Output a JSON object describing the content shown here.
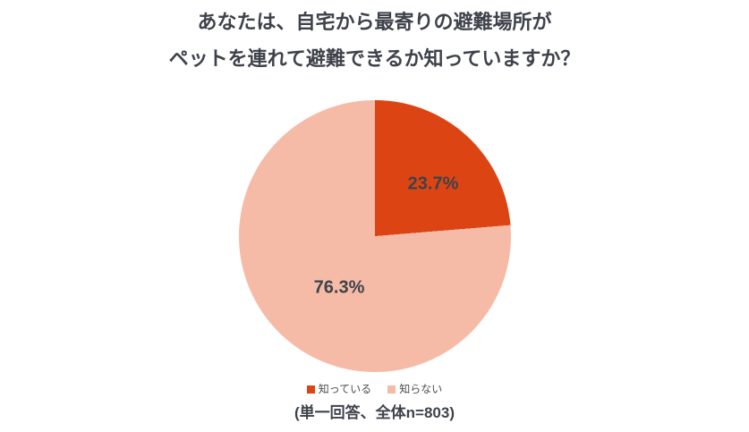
{
  "title": {
    "line1": "あなたは、自宅から最寄りの避難場所が",
    "line2": "ペットを連れて避難できるか知っていますか？"
  },
  "chart_data": {
    "type": "pie",
    "title": "あなたは、自宅から最寄りの避難場所がペットを連れて避難できるか知っていますか？",
    "slices": [
      {
        "label": "知っている",
        "value": 23.7,
        "display": "23.7%",
        "color": "#dc4513"
      },
      {
        "label": "知らない",
        "value": 76.3,
        "display": "76.3%",
        "color": "#f6bba7"
      }
    ],
    "start_angle_deg": 0,
    "direction": "clockwise",
    "legend_position": "bottom",
    "data_labels": "inside"
  },
  "legend": {
    "items": [
      {
        "label": "知っている",
        "color": "#dc4513"
      },
      {
        "label": "知らない",
        "color": "#f6bba7"
      }
    ]
  },
  "footnote": {
    "text": "(単一回答、全体n=803)"
  }
}
